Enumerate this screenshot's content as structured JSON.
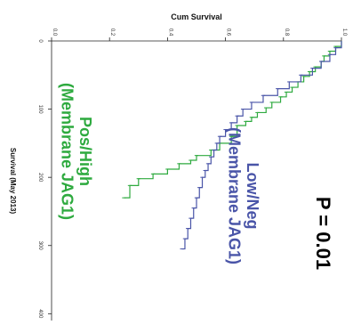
{
  "chart_data": {
    "type": "line",
    "step": true,
    "orientation": "rotated-90-clockwise",
    "xlabel": "Survival (May 2013)",
    "ylabel": "Cum Survival",
    "xlim": [
      0,
      410
    ],
    "ylim": [
      0.0,
      1.0
    ],
    "xticks": [
      0,
      100,
      200,
      300,
      400
    ],
    "yticks": [
      "0.0",
      "0.2",
      "0.4",
      "0.6",
      "0.8",
      "1.0"
    ],
    "grid": false,
    "annotation": "P = 0.01",
    "series": [
      {
        "name": "Pos/High (Membrane JAG1)",
        "label_lines": [
          "Pos/High",
          "(Membrane JAG1)"
        ],
        "color": "#2eaa3f",
        "points": [
          [
            0,
            1.0
          ],
          [
            8,
            0.98
          ],
          [
            15,
            0.96
          ],
          [
            22,
            0.94
          ],
          [
            30,
            0.93
          ],
          [
            38,
            0.91
          ],
          [
            45,
            0.89
          ],
          [
            52,
            0.87
          ],
          [
            60,
            0.85
          ],
          [
            68,
            0.83
          ],
          [
            75,
            0.81
          ],
          [
            82,
            0.79
          ],
          [
            90,
            0.76
          ],
          [
            98,
            0.74
          ],
          [
            105,
            0.71
          ],
          [
            112,
            0.69
          ],
          [
            118,
            0.67
          ],
          [
            124,
            0.64
          ],
          [
            140,
            0.62
          ],
          [
            150,
            0.58
          ],
          [
            160,
            0.55
          ],
          [
            168,
            0.5
          ],
          [
            175,
            0.48
          ],
          [
            180,
            0.44
          ],
          [
            188,
            0.4
          ],
          [
            195,
            0.35
          ],
          [
            202,
            0.3
          ],
          [
            212,
            0.27
          ],
          [
            230,
            0.25
          ]
        ]
      },
      {
        "name": "Low/Neg (Membrane JAG1)",
        "label_lines": [
          "Low/Neg",
          "(Membrane JAG1)"
        ],
        "color": "#4a55a8",
        "points": [
          [
            0,
            1.0
          ],
          [
            10,
            0.98
          ],
          [
            20,
            0.96
          ],
          [
            30,
            0.93
          ],
          [
            40,
            0.9
          ],
          [
            50,
            0.86
          ],
          [
            60,
            0.82
          ],
          [
            70,
            0.78
          ],
          [
            80,
            0.73
          ],
          [
            90,
            0.69
          ],
          [
            100,
            0.66
          ],
          [
            110,
            0.64
          ],
          [
            120,
            0.62
          ],
          [
            130,
            0.6
          ],
          [
            140,
            0.58
          ],
          [
            150,
            0.57
          ],
          [
            160,
            0.56
          ],
          [
            170,
            0.55
          ],
          [
            180,
            0.54
          ],
          [
            190,
            0.53
          ],
          [
            200,
            0.52
          ],
          [
            215,
            0.51
          ],
          [
            230,
            0.5
          ],
          [
            245,
            0.49
          ],
          [
            260,
            0.48
          ],
          [
            275,
            0.47
          ],
          [
            290,
            0.46
          ],
          [
            305,
            0.45
          ]
        ]
      }
    ]
  }
}
